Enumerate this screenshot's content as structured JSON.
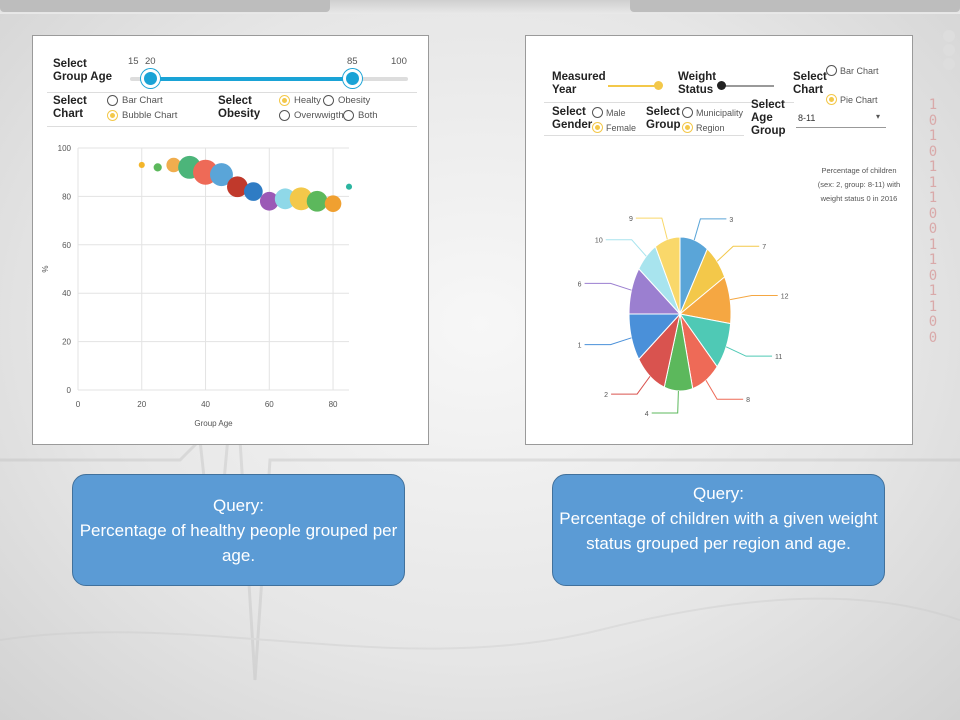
{
  "left": {
    "group_age": {
      "label": "Select Group Age",
      "ticks": [
        "15",
        "20",
        "85",
        "100"
      ],
      "range": [
        20,
        85
      ],
      "scale": [
        15,
        100
      ]
    },
    "select_chart": {
      "label": "Select Chart",
      "options": [
        "Bar Chart",
        "Bubble Chart"
      ],
      "selected": "Bubble Chart"
    },
    "select_obesity": {
      "label": "Select Obesity",
      "options": [
        "Healty",
        "Obesity",
        "Overwwigth",
        "Both"
      ],
      "selected": "Healty"
    },
    "query": {
      "title": "Query:",
      "text": "Percentage of healthy people grouped per age."
    }
  },
  "right": {
    "measured_year": {
      "label": "Measured Year"
    },
    "weight_status": {
      "label": "Weight Status"
    },
    "select_chart": {
      "label": "Select Chart",
      "options": [
        "Bar Chart",
        "Pie Chart"
      ],
      "selected": "Pie Chart"
    },
    "select_gender": {
      "label": "Select Gender",
      "options": [
        "Male",
        "Female"
      ],
      "selected": "Female"
    },
    "select_group": {
      "label": "Select Group",
      "options": [
        "Municipality",
        "Region"
      ],
      "selected": "Region"
    },
    "select_age_group": {
      "label": "Select Age Group",
      "value": "8-11"
    },
    "chart_caption": [
      "Percentage of children",
      "(sex: 2, group: 8-11) with",
      "weight status 0 in 2016"
    ],
    "query": {
      "title": "Query:",
      "text": "Percentage of children with a given weight status grouped per region and age."
    }
  },
  "chart_data": [
    {
      "type": "scatter",
      "title": "",
      "xlabel": "Group Age",
      "ylabel": "%",
      "xlim": [
        0,
        85
      ],
      "ylim": [
        0,
        100
      ],
      "x_ticks": [
        0,
        20,
        40,
        60,
        80
      ],
      "y_ticks": [
        0,
        20,
        40,
        60,
        80,
        100
      ],
      "points": [
        {
          "x": 20,
          "y": 93,
          "size": 1,
          "color": "#f3b52a"
        },
        {
          "x": 25,
          "y": 92,
          "size": 2,
          "color": "#5cb85c"
        },
        {
          "x": 30,
          "y": 93,
          "size": 5,
          "color": "#f0ad4e"
        },
        {
          "x": 35,
          "y": 92,
          "size": 9,
          "color": "#4cb57a"
        },
        {
          "x": 40,
          "y": 90,
          "size": 10,
          "color": "#ee6a57"
        },
        {
          "x": 45,
          "y": 89,
          "size": 9,
          "color": "#5aa5d8"
        },
        {
          "x": 50,
          "y": 84,
          "size": 8,
          "color": "#c0392b"
        },
        {
          "x": 55,
          "y": 82,
          "size": 7,
          "color": "#2f7cc4"
        },
        {
          "x": 60,
          "y": 78,
          "size": 7,
          "color": "#9b59b6"
        },
        {
          "x": 65,
          "y": 79,
          "size": 8,
          "color": "#8fd8e8"
        },
        {
          "x": 70,
          "y": 79,
          "size": 9,
          "color": "#f3c84a"
        },
        {
          "x": 75,
          "y": 78,
          "size": 8,
          "color": "#5cb85c"
        },
        {
          "x": 80,
          "y": 77,
          "size": 6,
          "color": "#f0a030"
        },
        {
          "x": 85,
          "y": 84,
          "size": 1,
          "color": "#2bb5a0"
        }
      ]
    },
    {
      "type": "pie",
      "title": "Percentage of children (sex: 2, group: 8-11) with weight status 0 in 2016",
      "slices": [
        {
          "label": "3",
          "value": 9,
          "color": "#5aa5d8"
        },
        {
          "label": "7",
          "value": 8,
          "color": "#f3c84a"
        },
        {
          "label": "12",
          "value": 10,
          "color": "#f5a742"
        },
        {
          "label": "11",
          "value": 10,
          "color": "#4fc9b5"
        },
        {
          "label": "8",
          "value": 9,
          "color": "#ee6a57"
        },
        {
          "label": "4",
          "value": 9,
          "color": "#5cb85c"
        },
        {
          "label": "2",
          "value": 10,
          "color": "#d9534f"
        },
        {
          "label": "1",
          "value": 10,
          "color": "#4a90d9"
        },
        {
          "label": "6",
          "value": 10,
          "color": "#9b7fd0"
        },
        {
          "label": "10",
          "value": 7,
          "color": "#a8e4ee"
        },
        {
          "label": "9",
          "value": 8,
          "color": "#f9d86a"
        }
      ]
    }
  ]
}
